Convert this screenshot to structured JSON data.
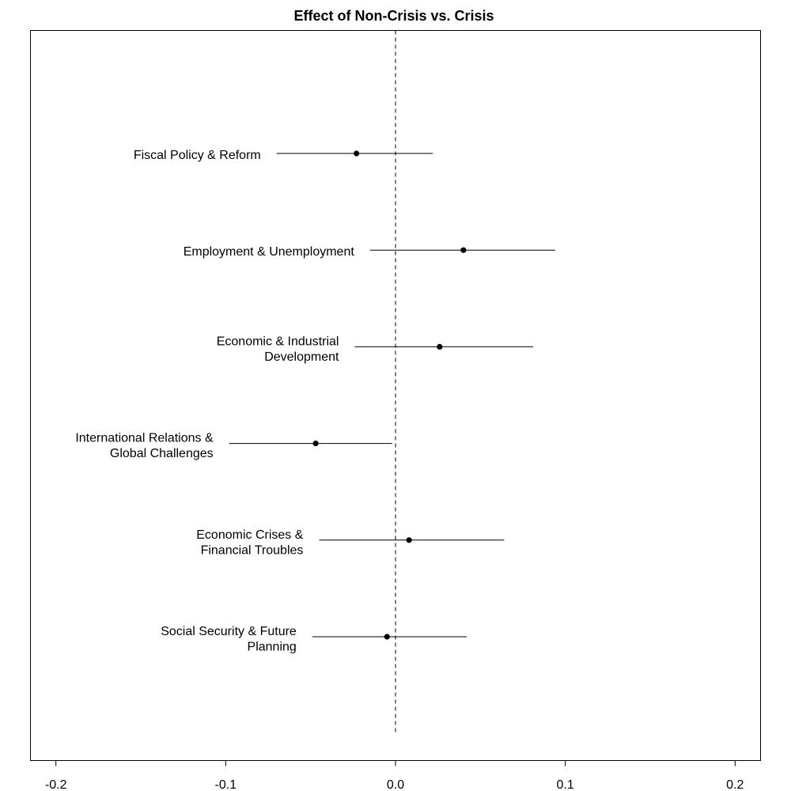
{
  "chart_data": {
    "type": "scatter",
    "subtype": "coefficient-plot",
    "title": "Effect of Non-Crisis vs. Crisis",
    "xlabel": "",
    "ylabel": "",
    "xlim": [
      -0.215,
      0.215
    ],
    "x_ticks": [
      -0.2,
      -0.1,
      0.0,
      0.1,
      0.2
    ],
    "x_tick_labels": [
      "-0.2",
      "-0.1",
      "0.0",
      "0.1",
      "0.2"
    ],
    "reference_line": {
      "x": 0.0,
      "style": "dashed"
    },
    "grid": false,
    "legend": "none",
    "colors": {
      "marks": "#000000",
      "background": "#ffffff"
    },
    "points": [
      {
        "label": [
          "Fiscal Policy & Reform"
        ],
        "estimate": -0.023,
        "lower": -0.07,
        "upper": 0.022
      },
      {
        "label": [
          "Employment & Unemployment"
        ],
        "estimate": 0.04,
        "lower": -0.015,
        "upper": 0.094
      },
      {
        "label": [
          "Economic & Industrial",
          "Development"
        ],
        "estimate": 0.026,
        "lower": -0.024,
        "upper": 0.081
      },
      {
        "label": [
          "International Relations &",
          "Global Challenges"
        ],
        "estimate": -0.047,
        "lower": -0.098,
        "upper": -0.002
      },
      {
        "label": [
          "Economic Crises &",
          "Financial Troubles"
        ],
        "estimate": 0.008,
        "lower": -0.045,
        "upper": 0.064
      },
      {
        "label": [
          "Social Security & Future",
          "Planning"
        ],
        "estimate": -0.005,
        "lower": -0.049,
        "upper": 0.042
      }
    ]
  }
}
